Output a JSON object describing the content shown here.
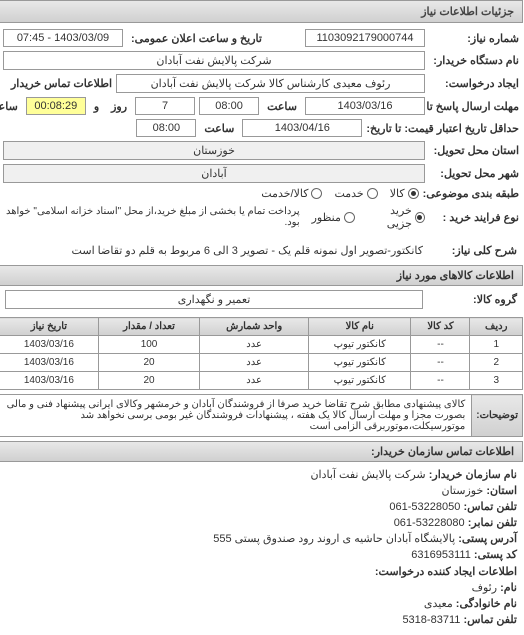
{
  "header": {
    "title": "جزئیات اطلاعات نیاز"
  },
  "form": {
    "niaz_no_label": "شماره نیاز:",
    "niaz_no": "1103092179000744",
    "date_time_label": "تاریخ و ساعت اعلان عمومی:",
    "date_time": "1403/03/09 - 07:45",
    "org_label": "نام دستگاه خریدار:",
    "org": "شرکت پالایش نفت آبادان",
    "request_label": "ایجاد درخواست:",
    "request_person": "رئوف معیدی کارشناس کالا شرکت پالایش نفت آبادان",
    "contact_title": "اطلاعات تماس خریدار",
    "deadline_label": "مهلت ارسال پاسخ تا تاریخ:",
    "deadline_date": "1403/03/16",
    "saat_label": "ساعت",
    "deadline_time": "08:00",
    "days": "7",
    "va_label": "و",
    "rooz_label": "روز",
    "countdown": "00:08:29",
    "remain_label": "ساعت باقی مانده",
    "price_validity_label": "حداقل تاریخ اعتبار قیمت: تا تاریخ:",
    "price_validity_date": "1403/04/16",
    "price_validity_time": "08:00",
    "province_label": "استان محل تحویل:",
    "province": "خوزستان",
    "city_label": "شهر محل تحویل:",
    "city": "آبادان",
    "piece_label": "طبقه بندی موضوعی:",
    "piece_options": {
      "kala": "کالا",
      "khadamat": "خدمت",
      "kala_khadamat": "کالا/خدمت"
    },
    "type_label": "نوع فرایند خرید :",
    "type_options": {
      "kharid_jozi": "خرید جزیی",
      "manzoor": "منظور"
    },
    "type_note": "پرداخت تمام یا بخشی از مبلغ خرید،از محل \"اسناد خزانه اسلامی\" خواهد بود."
  },
  "need_desc": {
    "label": "شرح کلی نیاز:",
    "text": "کانکتور-تصویر اول نمونه قلم یک - تصویر 3 الی 6 مربوط به قلم دو تقاضا است"
  },
  "goods_section": {
    "title": "اطلاعات کالاهای مورد نیاز",
    "group_label": "گروه کالا:",
    "group": "تعمیر و نگهداری"
  },
  "table": {
    "columns": {
      "row": "ردیف",
      "code": "کد کالا",
      "name": "نام کالا",
      "unit": "واحد شمارش",
      "qty": "تعداد / مقدار",
      "date": "تاریخ نیاز"
    },
    "rows": [
      {
        "row": "1",
        "code": "--",
        "name": "کانکتور تیوپ",
        "unit": "عدد",
        "qty": "100",
        "date": "1403/03/16"
      },
      {
        "row": "2",
        "code": "--",
        "name": "کانکتور تیوپ",
        "unit": "عدد",
        "qty": "20",
        "date": "1403/03/16"
      },
      {
        "row": "3",
        "code": "--",
        "name": "کانکتور تیوپ",
        "unit": "عدد",
        "qty": "20",
        "date": "1403/03/16"
      }
    ]
  },
  "notes": {
    "label": "توضیحات:",
    "text": "کالای پیشنهادی مطابق شرح تقاضا خرید صرفا از فروشندگان آبادان و خرمشهر وکالای ایرانی پیشنهاد فنی و مالی بصورت مجزا و مهلت ارسال کالا یک هفته ، پیشنهادات فروشندگان غیر بومی برسی نخواهد شد موتورسیکلت،موتوربرقی الزامی است"
  },
  "contact": {
    "title": "اطلاعات تماس سازمان خریدار:",
    "org_label": "نام سازمان خریدار:",
    "org": "شرکت پالایش نفت آبادان",
    "province_label": "استان:",
    "province": "خوزستان",
    "phone_label": "تلفن تماس:",
    "phone": "53228050-061",
    "fax_label": "تلفن نمابر:",
    "fax": "53228080-061",
    "addr_label": "آدرس پستی:",
    "addr": "پالایشگاه آبادان حاشیه ی اروند رود صندوق پستی 555",
    "postal_label": "کد پستی:",
    "postal": "6316953111",
    "creator_title": "اطلاعات ایجاد کننده درخواست:",
    "name_label": "نام:",
    "name": "رئوف",
    "family_label": "نام خانوادگی:",
    "family": "معیدی",
    "creator_phone_label": "تلفن تماس:",
    "creator_phone": "83711-5318"
  }
}
